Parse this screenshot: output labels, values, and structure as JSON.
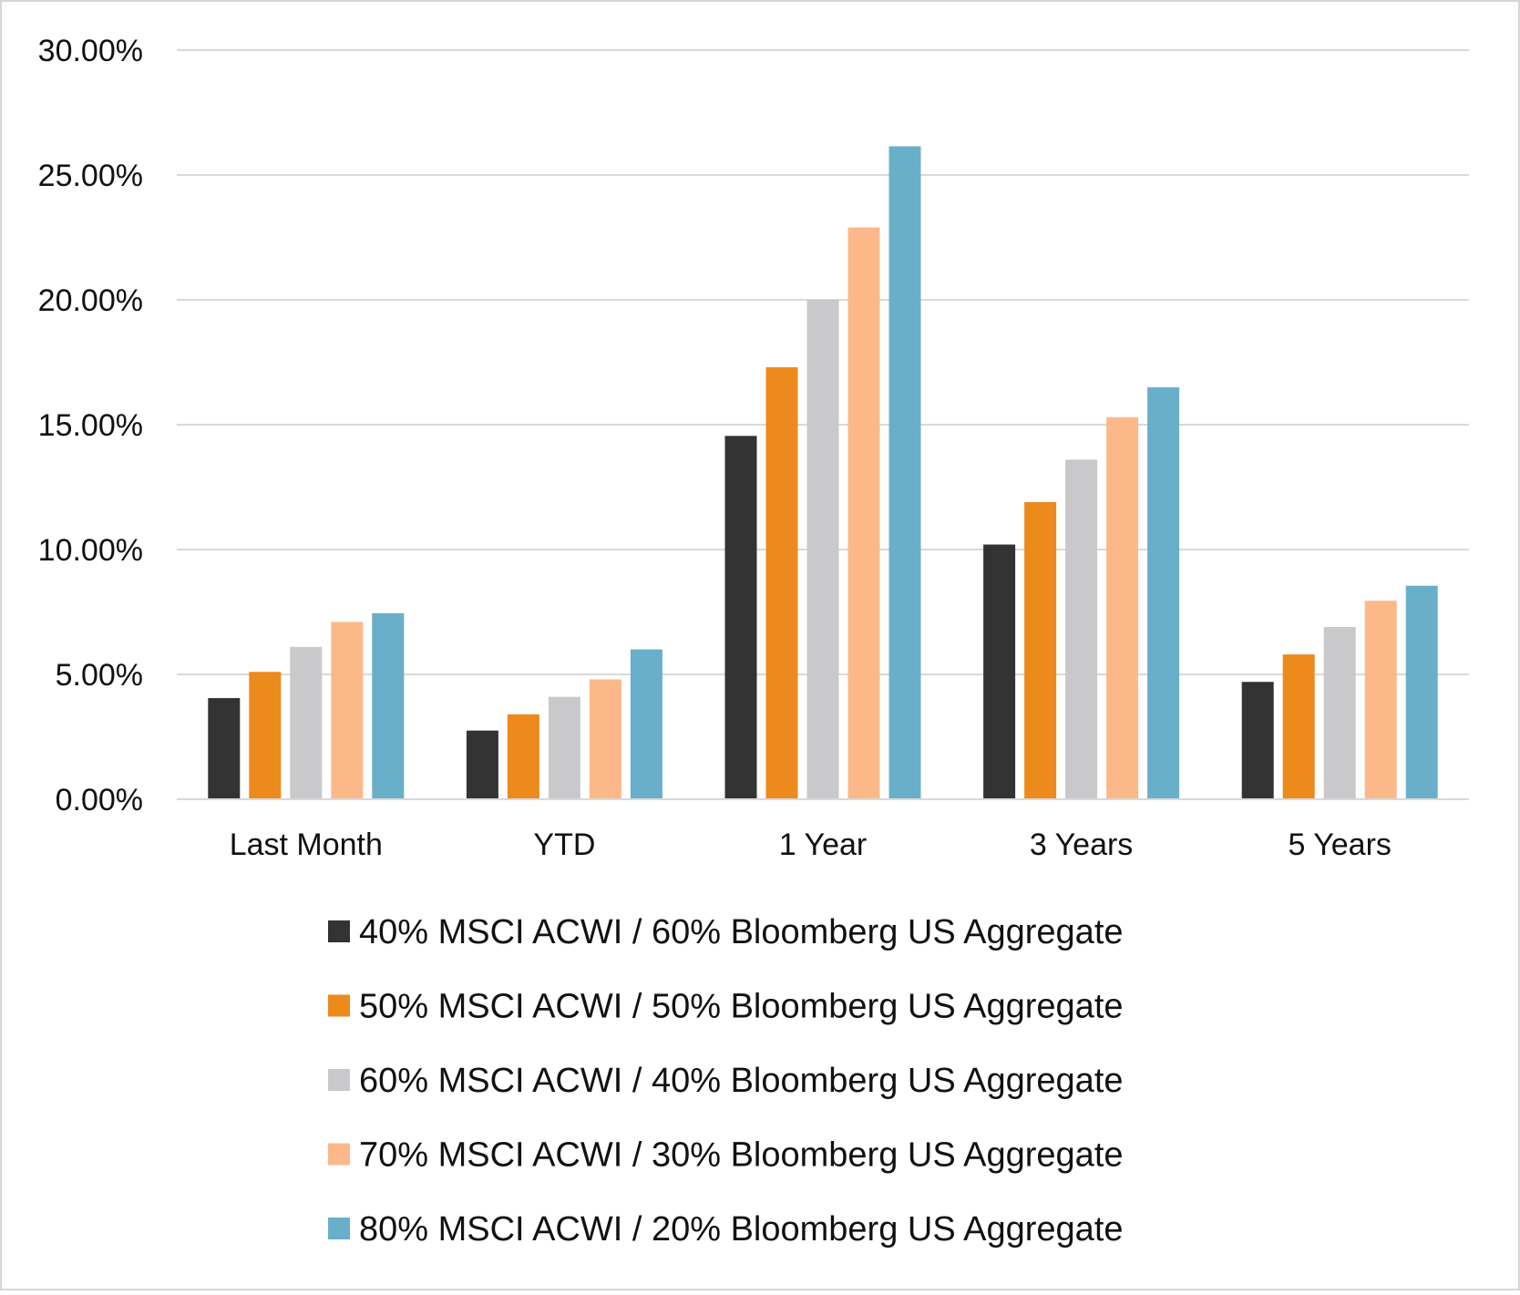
{
  "chart_data": {
    "type": "bar",
    "title": "",
    "xlabel": "",
    "ylabel": "",
    "categories": [
      "Last Month",
      "YTD",
      "1 Year",
      "3 Years",
      "5 Years"
    ],
    "ylim": [
      0,
      30
    ],
    "y_ticks": [
      "0.00%",
      "5.00%",
      "10.00%",
      "15.00%",
      "20.00%",
      "25.00%",
      "30.00%"
    ],
    "grid": true,
    "legend_position": "bottom",
    "series": [
      {
        "name": "40% MSCI ACWI / 60% Bloomberg US Aggregate",
        "color": "#333333",
        "values": [
          4.05,
          2.75,
          14.55,
          10.2,
          4.7
        ]
      },
      {
        "name": "50% MSCI ACWI / 50% Bloomberg US Aggregate",
        "color": "#ec8a1c",
        "values": [
          5.1,
          3.4,
          17.3,
          11.9,
          5.8
        ]
      },
      {
        "name": "60% MSCI ACWI / 40% Bloomberg US Aggregate",
        "color": "#c9c9cb",
        "values": [
          6.1,
          4.1,
          20.0,
          13.6,
          6.9
        ]
      },
      {
        "name": "70% MSCI ACWI / 30% Bloomberg US Aggregate",
        "color": "#fdb88a",
        "values": [
          7.1,
          4.8,
          22.9,
          15.3,
          7.95
        ]
      },
      {
        "name": "80% MSCI ACWI / 20% Bloomberg US Aggregate",
        "color": "#69afc9",
        "values": [
          7.45,
          6.0,
          26.15,
          16.5,
          8.55
        ]
      }
    ]
  }
}
